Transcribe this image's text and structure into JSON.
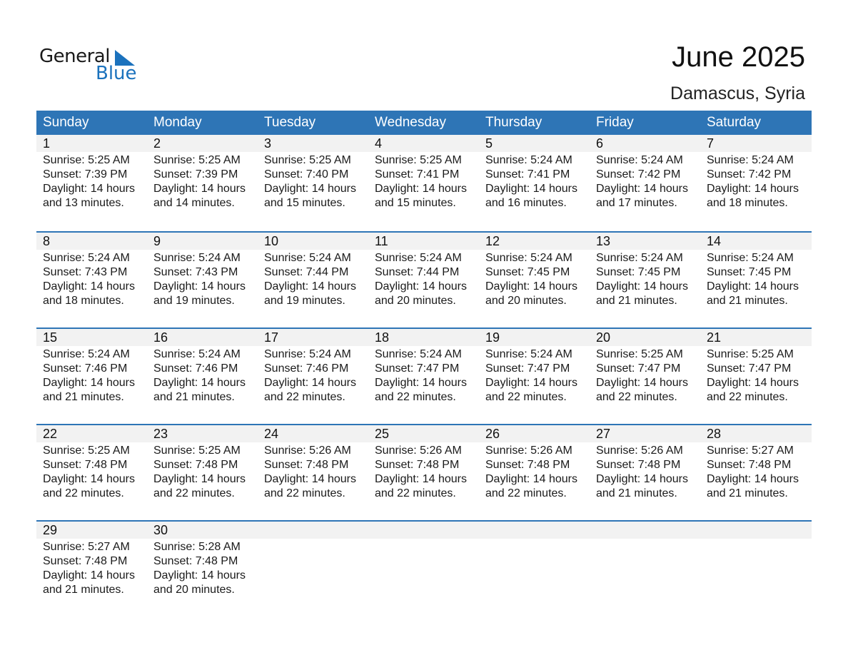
{
  "logo": {
    "line1": "General",
    "line2": "Blue"
  },
  "title": "June 2025",
  "location": "Damascus, Syria",
  "weekdays": [
    "Sunday",
    "Monday",
    "Tuesday",
    "Wednesday",
    "Thursday",
    "Friday",
    "Saturday"
  ],
  "days": [
    {
      "d": "1",
      "rise": "Sunrise: 5:25 AM",
      "set": "Sunset: 7:39 PM",
      "dl1": "Daylight: 14 hours",
      "dl2": "and 13 minutes."
    },
    {
      "d": "2",
      "rise": "Sunrise: 5:25 AM",
      "set": "Sunset: 7:39 PM",
      "dl1": "Daylight: 14 hours",
      "dl2": "and 14 minutes."
    },
    {
      "d": "3",
      "rise": "Sunrise: 5:25 AM",
      "set": "Sunset: 7:40 PM",
      "dl1": "Daylight: 14 hours",
      "dl2": "and 15 minutes."
    },
    {
      "d": "4",
      "rise": "Sunrise: 5:25 AM",
      "set": "Sunset: 7:41 PM",
      "dl1": "Daylight: 14 hours",
      "dl2": "and 15 minutes."
    },
    {
      "d": "5",
      "rise": "Sunrise: 5:24 AM",
      "set": "Sunset: 7:41 PM",
      "dl1": "Daylight: 14 hours",
      "dl2": "and 16 minutes."
    },
    {
      "d": "6",
      "rise": "Sunrise: 5:24 AM",
      "set": "Sunset: 7:42 PM",
      "dl1": "Daylight: 14 hours",
      "dl2": "and 17 minutes."
    },
    {
      "d": "7",
      "rise": "Sunrise: 5:24 AM",
      "set": "Sunset: 7:42 PM",
      "dl1": "Daylight: 14 hours",
      "dl2": "and 18 minutes."
    },
    {
      "d": "8",
      "rise": "Sunrise: 5:24 AM",
      "set": "Sunset: 7:43 PM",
      "dl1": "Daylight: 14 hours",
      "dl2": "and 18 minutes."
    },
    {
      "d": "9",
      "rise": "Sunrise: 5:24 AM",
      "set": "Sunset: 7:43 PM",
      "dl1": "Daylight: 14 hours",
      "dl2": "and 19 minutes."
    },
    {
      "d": "10",
      "rise": "Sunrise: 5:24 AM",
      "set": "Sunset: 7:44 PM",
      "dl1": "Daylight: 14 hours",
      "dl2": "and 19 minutes."
    },
    {
      "d": "11",
      "rise": "Sunrise: 5:24 AM",
      "set": "Sunset: 7:44 PM",
      "dl1": "Daylight: 14 hours",
      "dl2": "and 20 minutes."
    },
    {
      "d": "12",
      "rise": "Sunrise: 5:24 AM",
      "set": "Sunset: 7:45 PM",
      "dl1": "Daylight: 14 hours",
      "dl2": "and 20 minutes."
    },
    {
      "d": "13",
      "rise": "Sunrise: 5:24 AM",
      "set": "Sunset: 7:45 PM",
      "dl1": "Daylight: 14 hours",
      "dl2": "and 21 minutes."
    },
    {
      "d": "14",
      "rise": "Sunrise: 5:24 AM",
      "set": "Sunset: 7:45 PM",
      "dl1": "Daylight: 14 hours",
      "dl2": "and 21 minutes."
    },
    {
      "d": "15",
      "rise": "Sunrise: 5:24 AM",
      "set": "Sunset: 7:46 PM",
      "dl1": "Daylight: 14 hours",
      "dl2": "and 21 minutes."
    },
    {
      "d": "16",
      "rise": "Sunrise: 5:24 AM",
      "set": "Sunset: 7:46 PM",
      "dl1": "Daylight: 14 hours",
      "dl2": "and 21 minutes."
    },
    {
      "d": "17",
      "rise": "Sunrise: 5:24 AM",
      "set": "Sunset: 7:46 PM",
      "dl1": "Daylight: 14 hours",
      "dl2": "and 22 minutes."
    },
    {
      "d": "18",
      "rise": "Sunrise: 5:24 AM",
      "set": "Sunset: 7:47 PM",
      "dl1": "Daylight: 14 hours",
      "dl2": "and 22 minutes."
    },
    {
      "d": "19",
      "rise": "Sunrise: 5:24 AM",
      "set": "Sunset: 7:47 PM",
      "dl1": "Daylight: 14 hours",
      "dl2": "and 22 minutes."
    },
    {
      "d": "20",
      "rise": "Sunrise: 5:25 AM",
      "set": "Sunset: 7:47 PM",
      "dl1": "Daylight: 14 hours",
      "dl2": "and 22 minutes."
    },
    {
      "d": "21",
      "rise": "Sunrise: 5:25 AM",
      "set": "Sunset: 7:47 PM",
      "dl1": "Daylight: 14 hours",
      "dl2": "and 22 minutes."
    },
    {
      "d": "22",
      "rise": "Sunrise: 5:25 AM",
      "set": "Sunset: 7:48 PM",
      "dl1": "Daylight: 14 hours",
      "dl2": "and 22 minutes."
    },
    {
      "d": "23",
      "rise": "Sunrise: 5:25 AM",
      "set": "Sunset: 7:48 PM",
      "dl1": "Daylight: 14 hours",
      "dl2": "and 22 minutes."
    },
    {
      "d": "24",
      "rise": "Sunrise: 5:26 AM",
      "set": "Sunset: 7:48 PM",
      "dl1": "Daylight: 14 hours",
      "dl2": "and 22 minutes."
    },
    {
      "d": "25",
      "rise": "Sunrise: 5:26 AM",
      "set": "Sunset: 7:48 PM",
      "dl1": "Daylight: 14 hours",
      "dl2": "and 22 minutes."
    },
    {
      "d": "26",
      "rise": "Sunrise: 5:26 AM",
      "set": "Sunset: 7:48 PM",
      "dl1": "Daylight: 14 hours",
      "dl2": "and 22 minutes."
    },
    {
      "d": "27",
      "rise": "Sunrise: 5:26 AM",
      "set": "Sunset: 7:48 PM",
      "dl1": "Daylight: 14 hours",
      "dl2": "and 21 minutes."
    },
    {
      "d": "28",
      "rise": "Sunrise: 5:27 AM",
      "set": "Sunset: 7:48 PM",
      "dl1": "Daylight: 14 hours",
      "dl2": "and 21 minutes."
    },
    {
      "d": "29",
      "rise": "Sunrise: 5:27 AM",
      "set": "Sunset: 7:48 PM",
      "dl1": "Daylight: 14 hours",
      "dl2": "and 21 minutes."
    },
    {
      "d": "30",
      "rise": "Sunrise: 5:28 AM",
      "set": "Sunset: 7:48 PM",
      "dl1": "Daylight: 14 hours",
      "dl2": "and 20 minutes."
    }
  ],
  "colors": {
    "header": "#2e75b6",
    "band": "#f2f2f2",
    "logo_blue": "#1b72bd"
  }
}
